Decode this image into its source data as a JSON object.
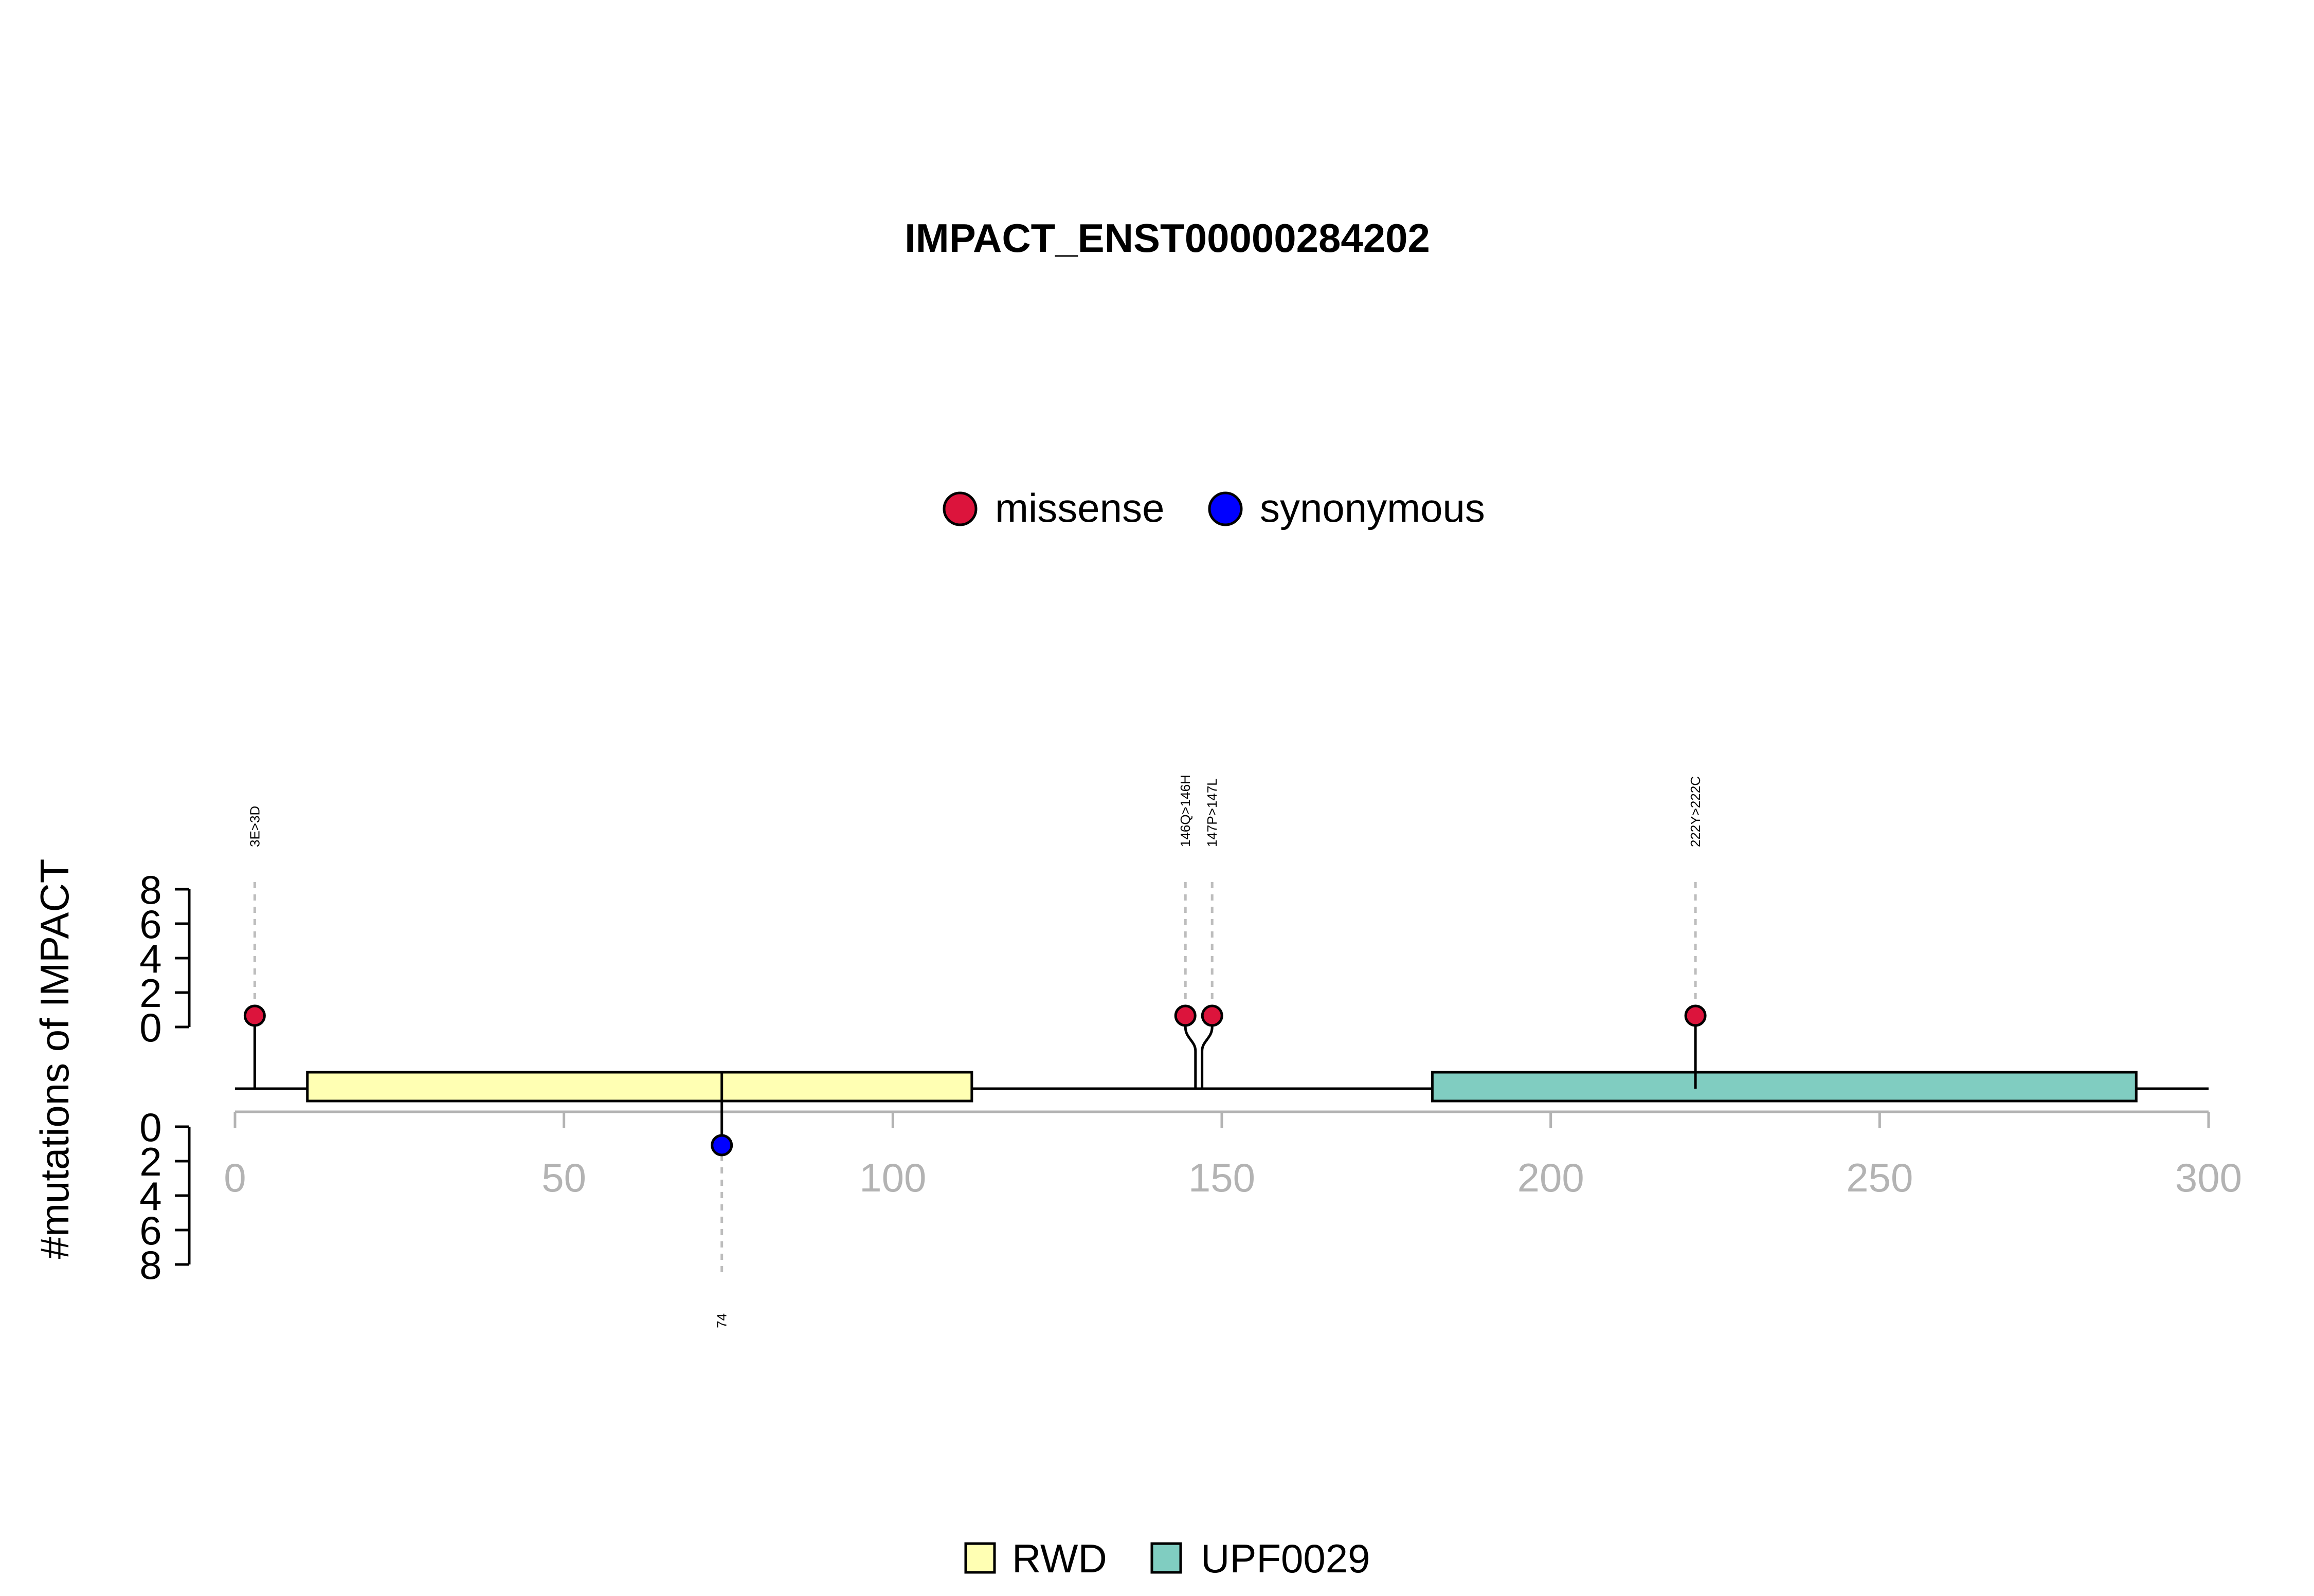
{
  "chart_data": {
    "type": "lollipop",
    "title": "IMPACT_ENST00000284202",
    "ylabel": "#mutations of IMPACT",
    "xlim": [
      0,
      300
    ],
    "x_ticks": [
      0,
      50,
      100,
      150,
      200,
      250,
      300
    ],
    "y_ticks": [
      0,
      2,
      4,
      6,
      8
    ],
    "legend_top": [
      {
        "label": "missense",
        "color": "#DC143C"
      },
      {
        "label": "synonymous",
        "color": "#0000FF"
      }
    ],
    "legend_bottom": [
      {
        "label": "RWD",
        "color": "#FFFFB3"
      },
      {
        "label": "UPF0029",
        "color": "#80CDC1"
      }
    ],
    "domains": [
      {
        "name": "RWD",
        "start": 11,
        "end": 112,
        "color": "#FFFFB3"
      },
      {
        "name": "UPF0029",
        "start": 182,
        "end": 289,
        "color": "#80CDC1"
      }
    ],
    "mutations": [
      {
        "position": 3,
        "label": "3E>3D",
        "type": "missense",
        "side": "up",
        "count": 1
      },
      {
        "position": 146,
        "label": "146Q>146H",
        "type": "missense",
        "side": "up",
        "count": 1
      },
      {
        "position": 147,
        "label": "147P>147L",
        "type": "missense",
        "side": "up",
        "count": 1
      },
      {
        "position": 222,
        "label": "222Y>222C",
        "type": "missense",
        "side": "up",
        "count": 1
      },
      {
        "position": 74,
        "label": "74",
        "type": "synonymous",
        "side": "down",
        "count": 1
      }
    ]
  }
}
